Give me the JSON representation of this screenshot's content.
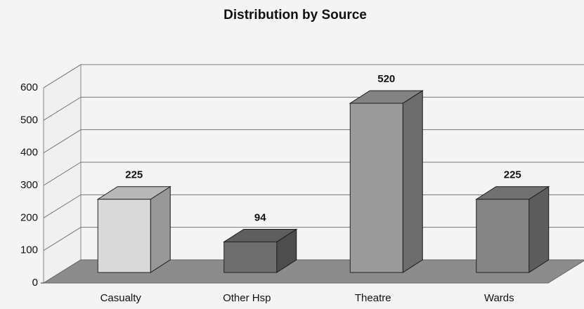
{
  "chart_data": {
    "type": "bar3d",
    "title": "Distribution by Source",
    "categories": [
      "Casualty",
      "Other Hsp",
      "Theatre",
      "Wards"
    ],
    "values": [
      225,
      94,
      520,
      225
    ],
    "colors": [
      "#d9d9d9",
      "#6e6e6e",
      "#9a9a9a",
      "#858585"
    ],
    "ylim": [
      0,
      600
    ],
    "yticks": [
      0,
      100,
      200,
      300,
      400,
      500,
      600
    ],
    "grid": true
  }
}
